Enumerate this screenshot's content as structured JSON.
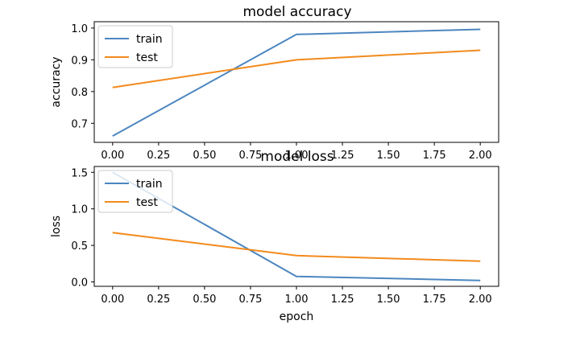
{
  "chart_data": [
    {
      "type": "line",
      "title": "model accuracy",
      "xlabel": "",
      "ylabel": "accuracy",
      "x": [
        0,
        1,
        2
      ],
      "xlim": [
        -0.1,
        2.1
      ],
      "ylim": [
        0.64,
        1.02
      ],
      "xticks": [
        0.0,
        0.25,
        0.5,
        0.75,
        1.0,
        1.25,
        1.5,
        1.75,
        2.0
      ],
      "xtick_labels": [
        "0.00",
        "0.25",
        "0.50",
        "0.75",
        "1.00",
        "1.25",
        "1.50",
        "1.75",
        "2.00"
      ],
      "yticks": [
        0.7,
        0.8,
        0.9,
        1.0
      ],
      "ytick_labels": [
        "0.7",
        "0.8",
        "0.9",
        "1.0"
      ],
      "grid": false,
      "legend_position": "upper-left",
      "series": [
        {
          "name": "train",
          "color": "#4c86c0",
          "values": [
            0.66,
            0.98,
            0.996
          ]
        },
        {
          "name": "test",
          "color": "#f28a1c",
          "values": [
            0.813,
            0.9,
            0.93
          ]
        }
      ]
    },
    {
      "type": "line",
      "title": "model loss",
      "xlabel": "epoch",
      "ylabel": "loss",
      "x": [
        0,
        1,
        2
      ],
      "xlim": [
        -0.1,
        2.1
      ],
      "ylim": [
        -0.06,
        1.58
      ],
      "xticks": [
        0.0,
        0.25,
        0.5,
        0.75,
        1.0,
        1.25,
        1.5,
        1.75,
        2.0
      ],
      "xtick_labels": [
        "0.00",
        "0.25",
        "0.50",
        "0.75",
        "1.00",
        "1.25",
        "1.50",
        "1.75",
        "2.00"
      ],
      "yticks": [
        0.0,
        0.5,
        1.0,
        1.5
      ],
      "ytick_labels": [
        "0.0",
        "0.5",
        "1.0",
        "1.5"
      ],
      "grid": false,
      "legend_position": "upper-left",
      "series": [
        {
          "name": "train",
          "color": "#4c86c0",
          "values": [
            1.5,
            0.075,
            0.02
          ]
        },
        {
          "name": "test",
          "color": "#f28a1c",
          "values": [
            0.675,
            0.36,
            0.285
          ]
        }
      ]
    }
  ]
}
